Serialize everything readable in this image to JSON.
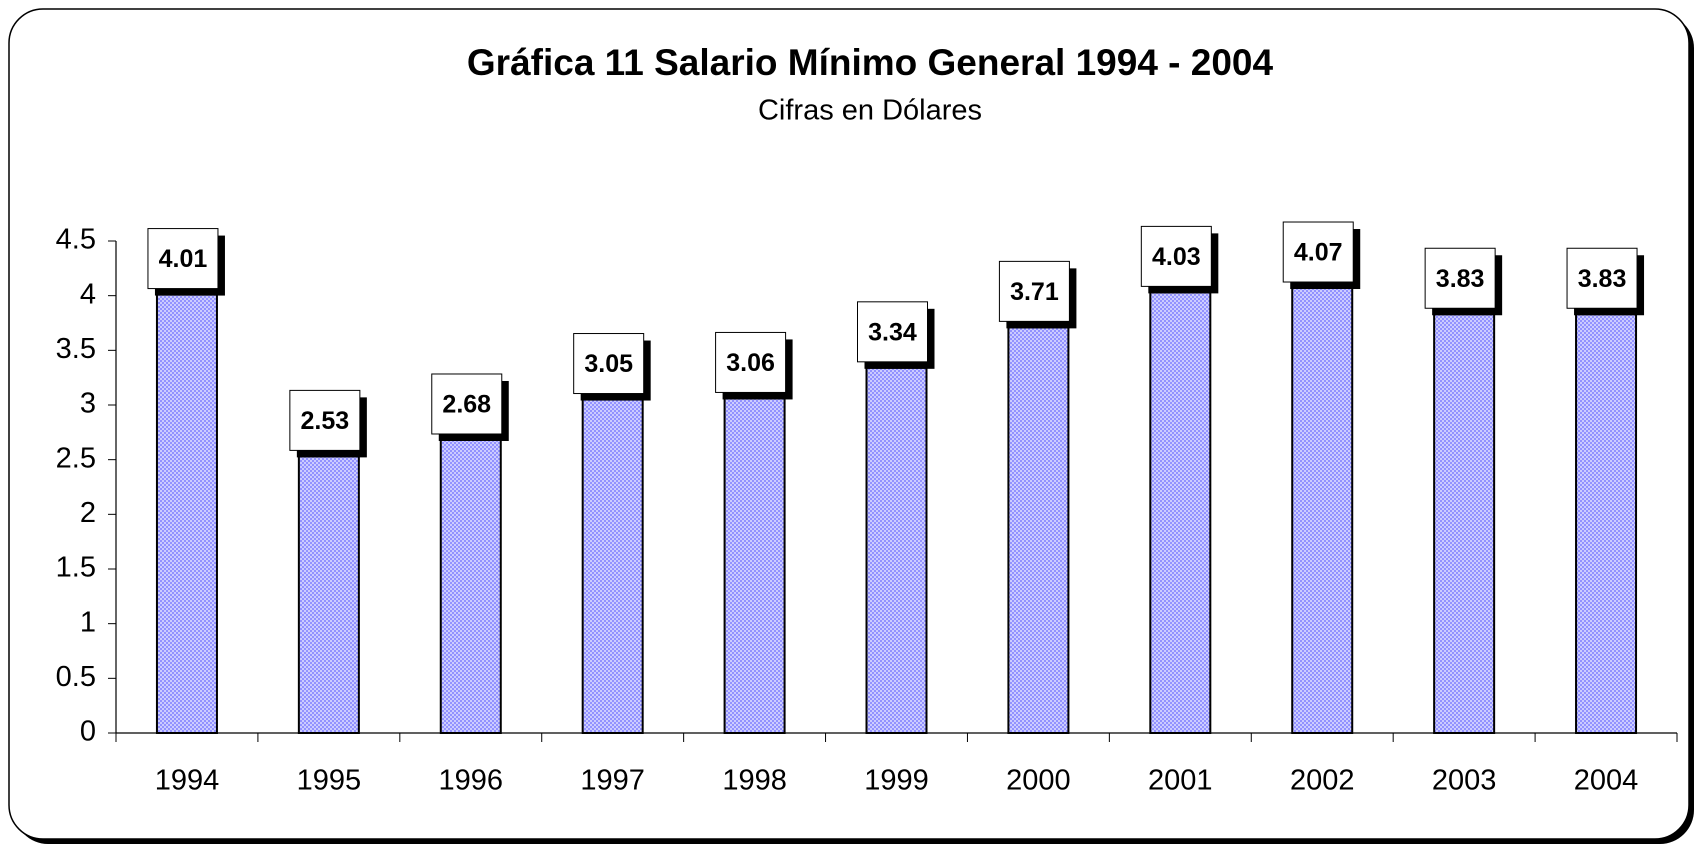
{
  "chart_data": {
    "type": "bar",
    "title": "Gráfica 11  Salario Mínimo General 1994 - 2004",
    "subtitle": "Cifras en Dólares",
    "categories": [
      "1994",
      "1995",
      "1996",
      "1997",
      "1998",
      "1999",
      "2000",
      "2001",
      "2002",
      "2003",
      "2004"
    ],
    "values": [
      4.01,
      2.53,
      2.68,
      3.05,
      3.06,
      3.34,
      3.71,
      4.03,
      4.07,
      3.83,
      3.83
    ],
    "color": "#9999ff",
    "ylim": [
      0,
      4.5
    ],
    "yticks": [
      0,
      0.5,
      1,
      1.5,
      2,
      2.5,
      3,
      3.5,
      4,
      4.5
    ],
    "grid": false
  }
}
